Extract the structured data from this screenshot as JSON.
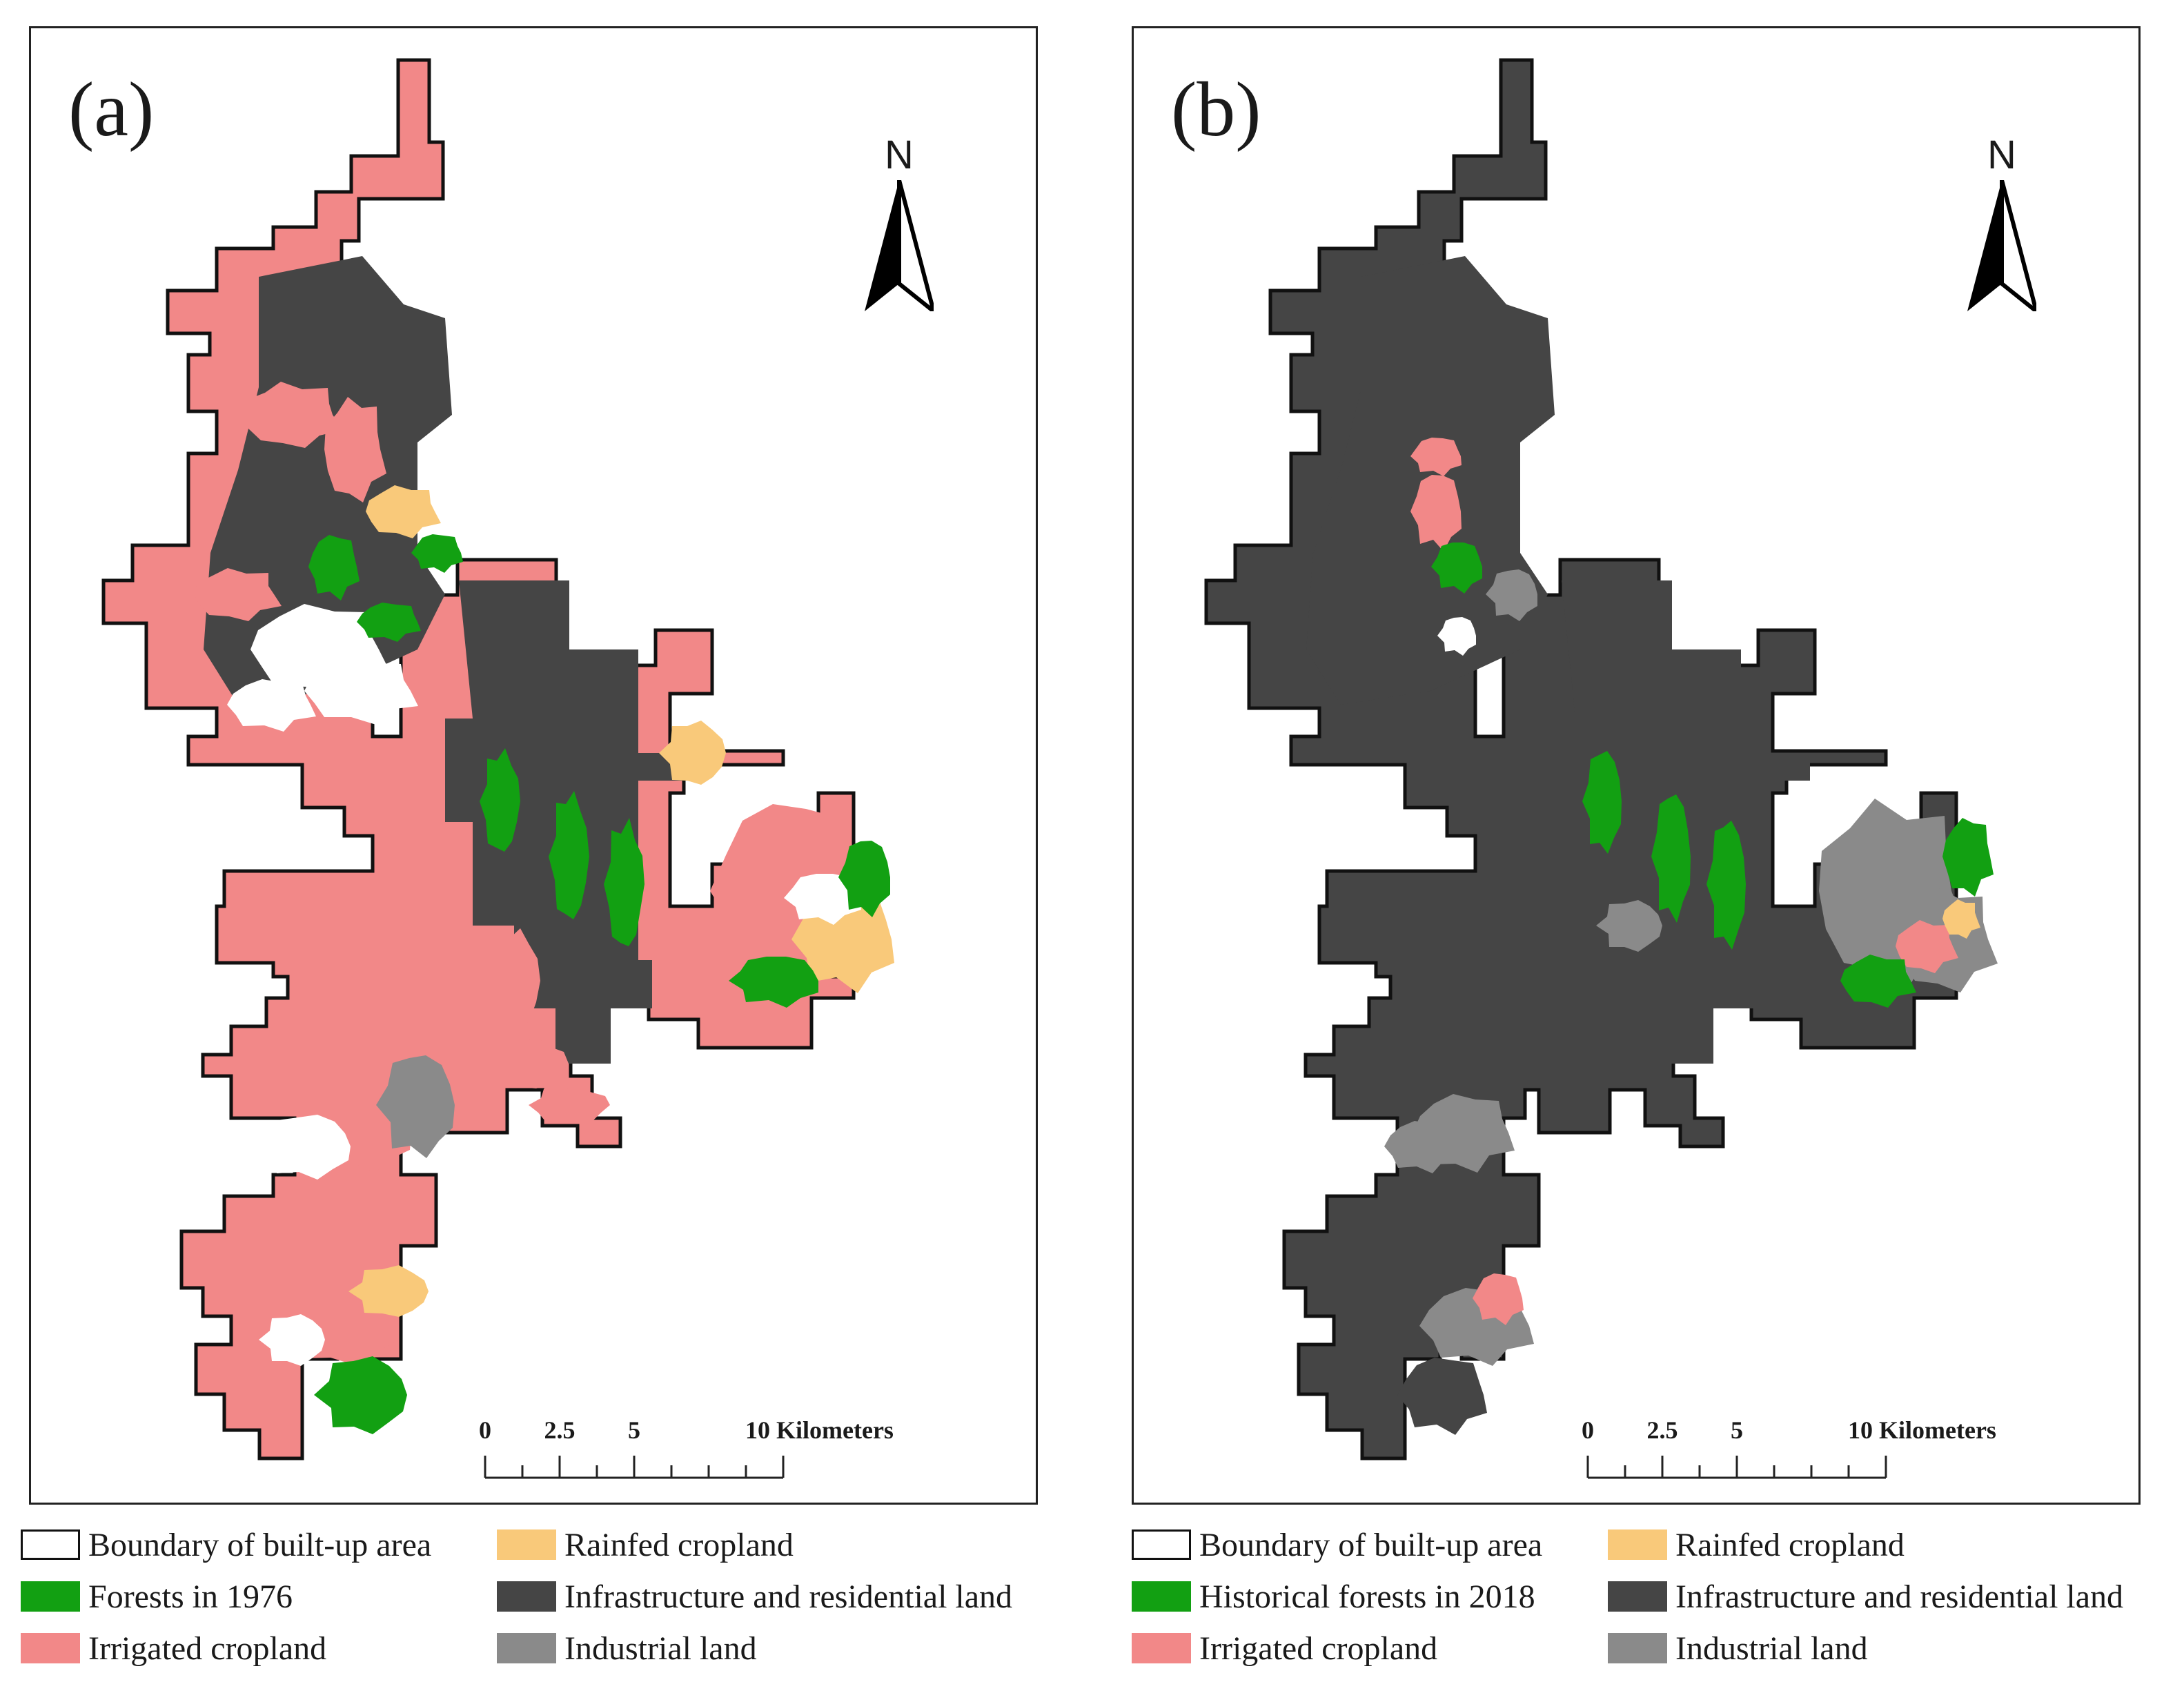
{
  "panels": [
    {
      "label": "(a)",
      "north_label": "N",
      "scale": {
        "ticks": [
          "0",
          "2.5",
          "5",
          "10 Kilometers"
        ]
      },
      "legend": [
        {
          "label": "Boundary of built-up area",
          "color": "#ffffff",
          "outline": "#111111"
        },
        {
          "label": "Rainfed cropland",
          "color": "#f9c97a"
        },
        {
          "label": "Forests in 1976",
          "color": "#12a012"
        },
        {
          "label": "Infrastructure and residential land",
          "color": "#454545"
        },
        {
          "label": "Irrigated cropland",
          "color": "#f28888"
        },
        {
          "label": "Industrial land",
          "color": "#8a8a8a"
        }
      ]
    },
    {
      "label": "(b)",
      "north_label": "N",
      "scale": {
        "ticks": [
          "0",
          "2.5",
          "5",
          "10 Kilometers"
        ]
      },
      "legend": [
        {
          "label": "Boundary of built-up area",
          "color": "#ffffff",
          "outline": "#111111"
        },
        {
          "label": "Rainfed cropland",
          "color": "#f9c97a"
        },
        {
          "label": "Historical forests in 2018",
          "color": "#12a012"
        },
        {
          "label": "Infrastructure and residential land",
          "color": "#454545"
        },
        {
          "label": "Irrigated cropland",
          "color": "#f28888"
        },
        {
          "label": "Industrial land",
          "color": "#8a8a8a"
        }
      ]
    }
  ]
}
